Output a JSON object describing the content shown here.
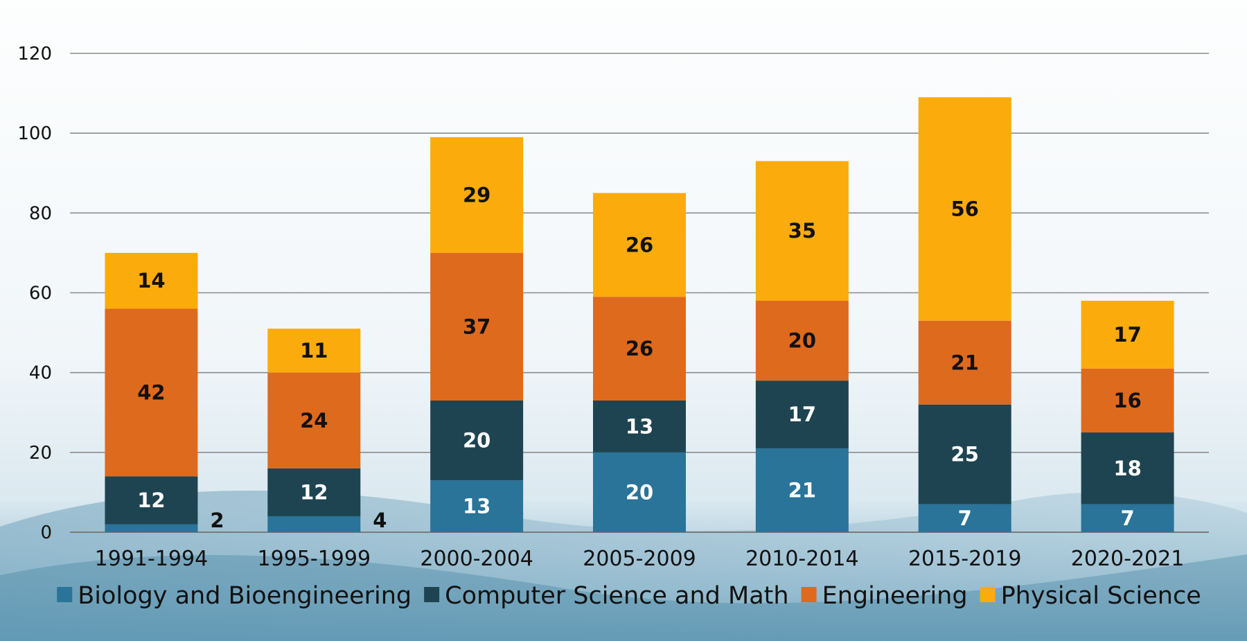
{
  "chart_data": {
    "type": "bar",
    "stacked": true,
    "title": "",
    "xlabel": "",
    "ylabel": "",
    "ylim": [
      0,
      120
    ],
    "yticks": [
      0,
      20,
      40,
      60,
      80,
      100,
      120
    ],
    "grid": true,
    "legend_position": "bottom",
    "categories": [
      "1991-1994",
      "1995-1999",
      "2000-2004",
      "2005-2009",
      "2010-2014",
      "2015-2019",
      "2020-2021"
    ],
    "series": [
      {
        "name": "Biology and Bioengineering",
        "color": "#2a7399",
        "label_color": "#ffffff",
        "values": [
          2,
          4,
          13,
          20,
          21,
          7,
          7
        ]
      },
      {
        "name": "Computer Science and Math",
        "color": "#1f4451",
        "label_color": "#ffffff",
        "values": [
          12,
          12,
          20,
          13,
          17,
          25,
          18
        ]
      },
      {
        "name": "Engineering",
        "color": "#de6a1e",
        "label_color": "#111111",
        "values": [
          42,
          24,
          37,
          26,
          20,
          21,
          16
        ]
      },
      {
        "name": "Physical Science",
        "color": "#fbab0b",
        "label_color": "#111111",
        "values": [
          14,
          11,
          29,
          26,
          35,
          56,
          17
        ]
      }
    ]
  }
}
